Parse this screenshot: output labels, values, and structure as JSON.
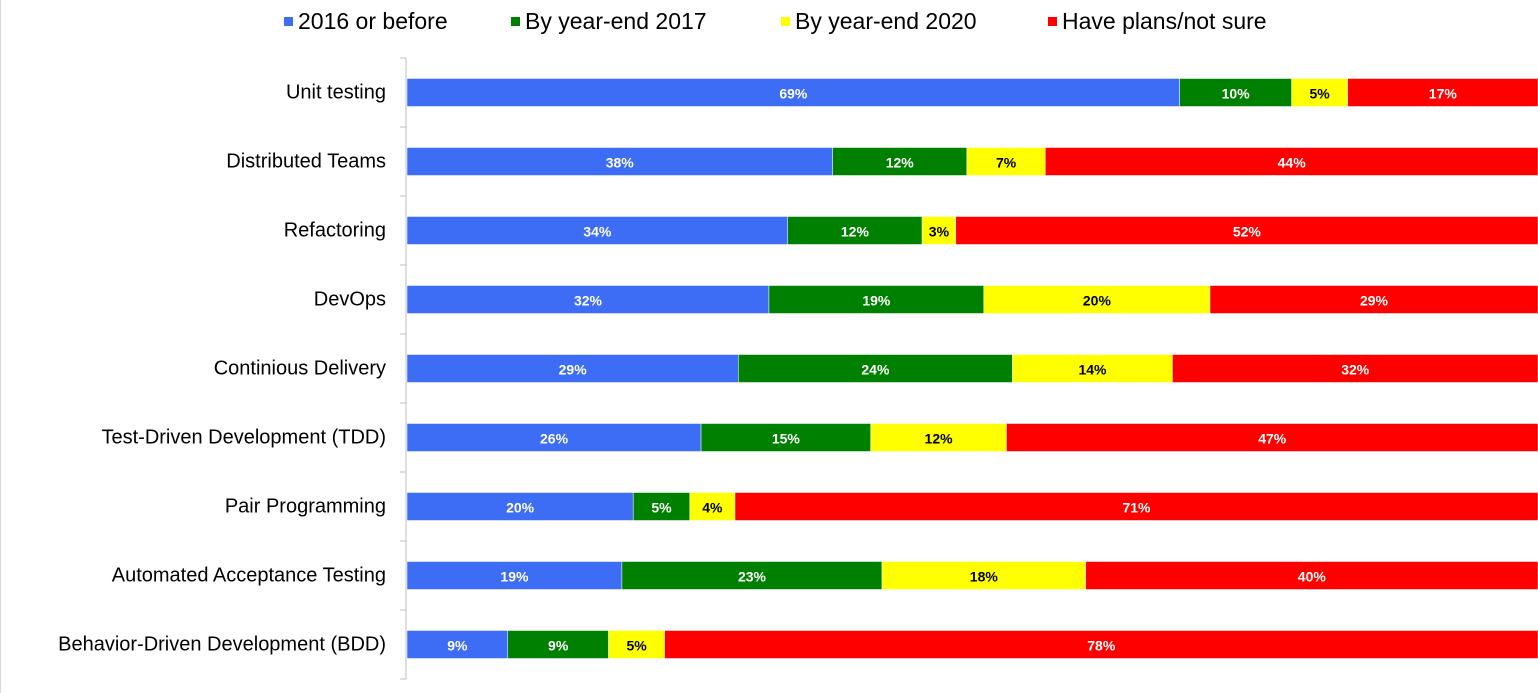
{
  "chart_data": {
    "type": "bar",
    "orientation": "horizontal",
    "stacked": "percent",
    "title": "",
    "xlabel": "",
    "ylabel": "",
    "xlim": [
      0,
      100
    ],
    "legend_position": "top",
    "grid": false,
    "categories": [
      "Unit testing",
      "Distributed Teams",
      "Refactoring",
      "DevOps",
      "Continious Delivery",
      "Test-Driven Development (TDD)",
      "Pair Programming",
      "Automated Acceptance Testing",
      "Behavior-Driven Development (BDD)"
    ],
    "series": [
      {
        "name": "2016 or before",
        "color": "#3d6cf5",
        "label_color": "#ffffff",
        "values": [
          69,
          38,
          34,
          32,
          29,
          26,
          20,
          19,
          9
        ],
        "labels": [
          "69%",
          "38%",
          "34%",
          "32%",
          "29%",
          "26%",
          "20%",
          "19%",
          "9%"
        ]
      },
      {
        "name": "By year-end 2017",
        "color": "#008000",
        "label_color": "#ffffff",
        "values": [
          10,
          12,
          12,
          19,
          24,
          15,
          5,
          23,
          9
        ],
        "labels": [
          "10%",
          "12%",
          "12%",
          "19%",
          "24%",
          "15%",
          "5%",
          "23%",
          "9%"
        ]
      },
      {
        "name": "By year-end 2020",
        "color": "#ffff00",
        "label_color": "#000000",
        "values": [
          5,
          7,
          3,
          20,
          14,
          12,
          4,
          18,
          5
        ],
        "labels": [
          "5%",
          "7%",
          "3%",
          "20%",
          "14%",
          "12%",
          "4%",
          "18%",
          "5%"
        ]
      },
      {
        "name": "Have plans/not sure",
        "color": "#ff0000",
        "label_color": "#ffffff",
        "values": [
          17,
          44,
          52,
          29,
          32,
          47,
          71,
          40,
          78
        ],
        "labels": [
          "17%",
          "44%",
          "52%",
          "29%",
          "32%",
          "47%",
          "71%",
          "40%",
          "78%"
        ]
      }
    ]
  }
}
